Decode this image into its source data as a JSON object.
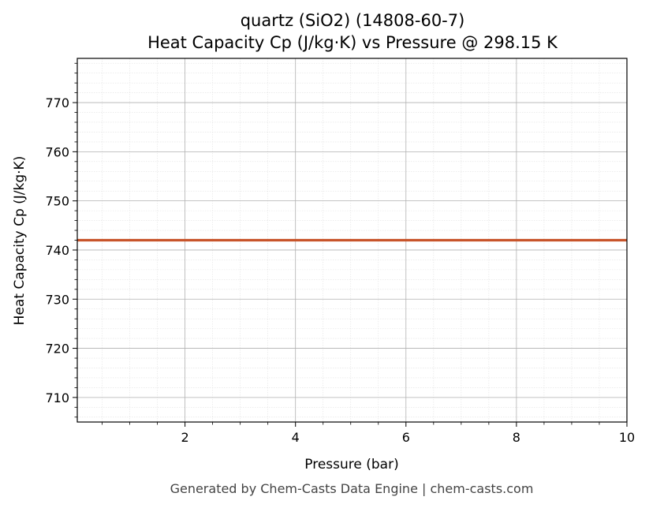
{
  "chart_data": {
    "type": "line",
    "title_line1": "quartz (SiO2) (14808-60-7)",
    "title_line2": "Heat Capacity Cp (J/kg·K) vs Pressure @ 298.15 K",
    "xlabel": "Pressure (bar)",
    "ylabel": "Heat Capacity Cp (J/kg·K)",
    "xlim": [
      0.05,
      10
    ],
    "ylim": [
      705,
      779
    ],
    "x_ticks": [
      2,
      4,
      6,
      8,
      10
    ],
    "y_ticks": [
      710,
      720,
      730,
      740,
      750,
      760,
      770
    ],
    "x_minor_step": 0.5,
    "y_minor_step": 2,
    "grid": true,
    "minor_grid": true,
    "series": [
      {
        "color": "#c8542a",
        "x": [
          0.05,
          10
        ],
        "y": [
          742,
          742
        ]
      }
    ]
  },
  "footer": "Generated by Chem-Casts Data Engine | chem-casts.com"
}
